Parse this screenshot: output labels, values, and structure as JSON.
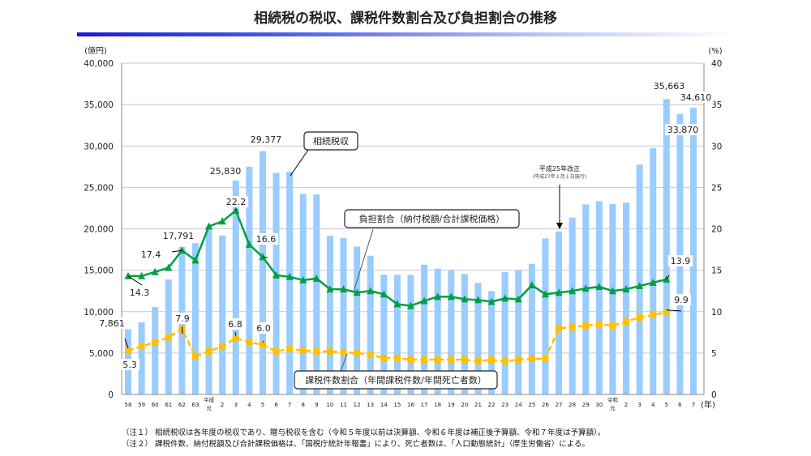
{
  "title": "相続税の税収、課税件数割合及び負担割合の推移",
  "chart_data": {
    "type": "bar+line",
    "left_unit": "(億円)",
    "right_unit": "(%)",
    "x_unit": "(年)",
    "left_ylim": [
      0,
      40000
    ],
    "right_ylim": [
      0,
      40
    ],
    "left_ticks": [
      "0",
      "5,000",
      "10,000",
      "15,000",
      "20,000",
      "25,000",
      "30,000",
      "35,000",
      "40,000"
    ],
    "right_ticks": [
      "0",
      "5",
      "10",
      "15",
      "20",
      "25",
      "30",
      "35",
      "40"
    ],
    "grid": true,
    "categories": [
      "58",
      "59",
      "60",
      "61",
      "62",
      "63",
      "平成|元",
      "2",
      "3",
      "4",
      "5",
      "6",
      "7",
      "8",
      "9",
      "10",
      "11",
      "12",
      "13",
      "14",
      "15",
      "16",
      "17",
      "18",
      "19",
      "20",
      "21",
      "22",
      "23",
      "24",
      "25",
      "26",
      "27",
      "28",
      "29",
      "30",
      "令和|元",
      "2",
      "3",
      "4",
      "5",
      "6",
      "7"
    ],
    "series": [
      {
        "name": "相続税収",
        "type": "bar",
        "axis": "left",
        "color": "#99ccff",
        "values": [
          7861,
          8700,
          10560,
          13880,
          17791,
          18280,
          20200,
          19190,
          25830,
          27500,
          29377,
          26750,
          26900,
          24210,
          24150,
          19160,
          18870,
          17860,
          16750,
          14470,
          14440,
          14440,
          15670,
          15180,
          15020,
          14530,
          13460,
          12480,
          14760,
          15020,
          15770,
          18830,
          19680,
          21340,
          22940,
          23330,
          23000,
          23170,
          27740,
          29750,
          35663,
          33870,
          34610
        ]
      },
      {
        "name": "負担割合（納付税額/合計課税価格）",
        "type": "line",
        "axis": "right",
        "color": "#00a040",
        "marker": "triangle",
        "values": [
          14.3,
          14.3,
          14.8,
          15.3,
          17.4,
          16.2,
          20.3,
          20.9,
          22.2,
          18.1,
          16.6,
          14.4,
          14.2,
          13.8,
          14.0,
          12.7,
          12.7,
          12.3,
          12.5,
          12.1,
          10.9,
          10.7,
          11.3,
          11.8,
          11.8,
          11.5,
          11.4,
          11.2,
          11.6,
          11.5,
          13.2,
          12.1,
          12.3,
          12.5,
          12.8,
          13.0,
          12.5,
          12.7,
          13.1,
          13.5,
          13.9,
          null,
          null
        ]
      },
      {
        "name": "課税件数割合（年間課税件数/年間死亡者数）",
        "type": "line",
        "axis": "right",
        "color": "#ffc000",
        "dashed": true,
        "marker": "square",
        "values": [
          5.3,
          5.8,
          6.3,
          6.9,
          7.9,
          4.6,
          5.2,
          5.8,
          6.8,
          6.3,
          6.0,
          5.2,
          5.5,
          5.3,
          5.2,
          5.2,
          5.1,
          5.0,
          4.8,
          4.4,
          4.4,
          4.2,
          4.2,
          4.2,
          4.2,
          4.2,
          4.0,
          4.2,
          4.0,
          4.2,
          4.3,
          4.3,
          8.0,
          8.1,
          8.3,
          8.5,
          8.3,
          8.8,
          9.3,
          9.6,
          9.9,
          null,
          null
        ]
      }
    ],
    "data_labels": {
      "bars": [
        [
          "7,861",
          0
        ],
        [
          "17,791",
          4
        ],
        [
          "25,830",
          8
        ],
        [
          "29,377",
          10
        ],
        [
          "35,663",
          40
        ],
        [
          "33,870",
          41
        ],
        [
          "34,610",
          42
        ]
      ],
      "burden": [
        [
          "14.3",
          0
        ],
        [
          "17.4",
          4
        ],
        [
          "22.2",
          8
        ],
        [
          "16.6",
          10
        ],
        [
          "13.9",
          40
        ]
      ],
      "count": [
        [
          "5.3",
          0
        ],
        [
          "7.9",
          4
        ],
        [
          "6.8",
          8
        ],
        [
          "6.0",
          10
        ],
        [
          "9.9",
          40
        ]
      ]
    },
    "callouts": {
      "revenue": "相続税収",
      "burden": "負担割合（納付税額/合計課税価格）",
      "count": "課税件数割合（年間課税件数/年間死亡者数）"
    },
    "annotation": {
      "line1": "平成25年改正",
      "line2": "(平成27年１月１日施行)"
    }
  },
  "notes": [
    "（注１） 相続税収は各年度の税収であり、贈与税収を含む（令和５年度以前は決算額、令和６年度は補正後予算額、令和７年度は予算額）。",
    "（注２） 課税件数、納付税額及び合計課税価格は、「国税庁統計年報書」により、死亡者数は、「人口動態統計」（厚生労働省）による。"
  ]
}
